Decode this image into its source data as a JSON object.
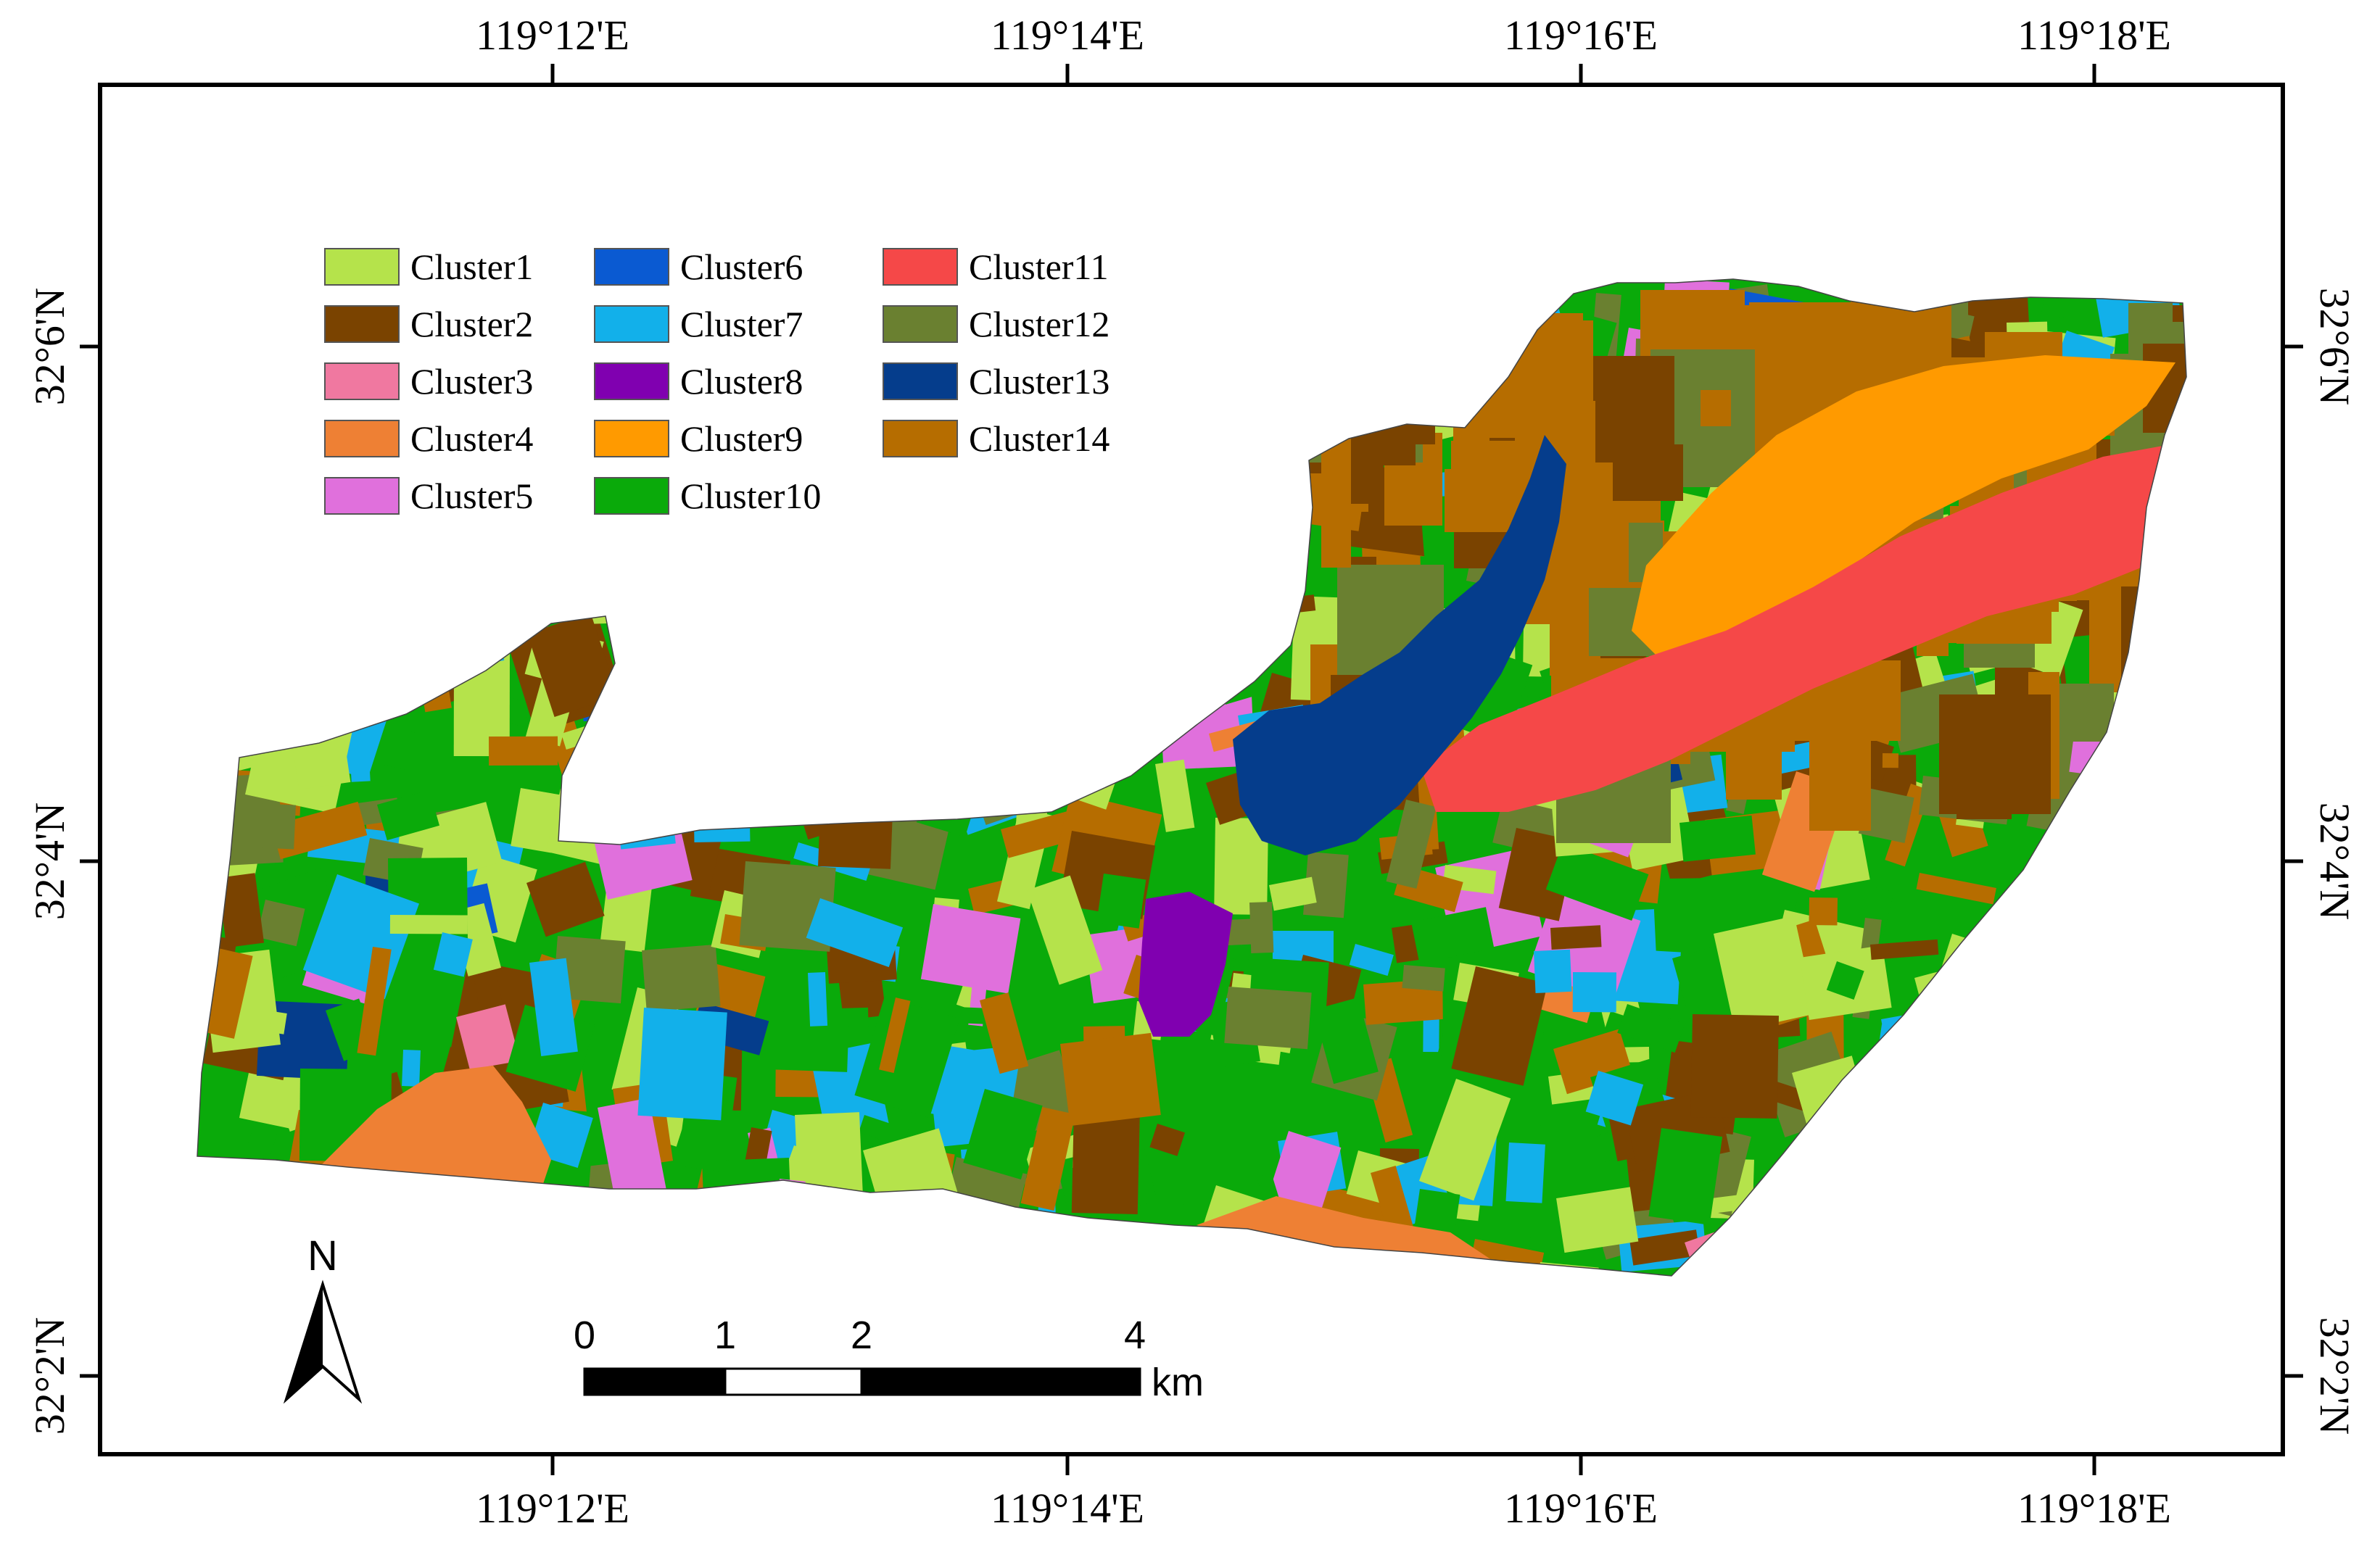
{
  "map": {
    "top_lon_labels": [
      "119°12'E",
      "119°14'E",
      "119°16'E",
      "119°18'E"
    ],
    "bottom_lon_labels": [
      "119°12'E",
      "119°14'E",
      "119°16'E",
      "119°18'E"
    ],
    "left_lat_labels": [
      "32°6'N",
      "32°4'N",
      "32°2'N"
    ],
    "right_lat_labels": [
      "32°6'N",
      "32°4'N",
      "32°2'N"
    ]
  },
  "legend": [
    {
      "label": "Cluster1",
      "color": "#b5e34b"
    },
    {
      "label": "Cluster2",
      "color": "#7a4300"
    },
    {
      "label": "Cluster3",
      "color": "#f078a0"
    },
    {
      "label": "Cluster4",
      "color": "#ee8034"
    },
    {
      "label": "Cluster5",
      "color": "#e070dc"
    },
    {
      "label": "Cluster6",
      "color": "#0a5ad2"
    },
    {
      "label": "Cluster7",
      "color": "#12b0ea"
    },
    {
      "label": "Cluster8",
      "color": "#8000b0"
    },
    {
      "label": "Cluster9",
      "color": "#ff9a00"
    },
    {
      "label": "Cluster10",
      "color": "#0aaa0a"
    },
    {
      "label": "Cluster11",
      "color": "#f54848"
    },
    {
      "label": "Cluster12",
      "color": "#6a8030"
    },
    {
      "label": "Cluster13",
      "color": "#053d8c"
    },
    {
      "label": "Cluster14",
      "color": "#b66d00"
    }
  ],
  "north_arrow": {
    "label": "N"
  },
  "scale_bar": {
    "ticks": [
      "0",
      "1",
      "2",
      "4"
    ],
    "unit": "km"
  }
}
